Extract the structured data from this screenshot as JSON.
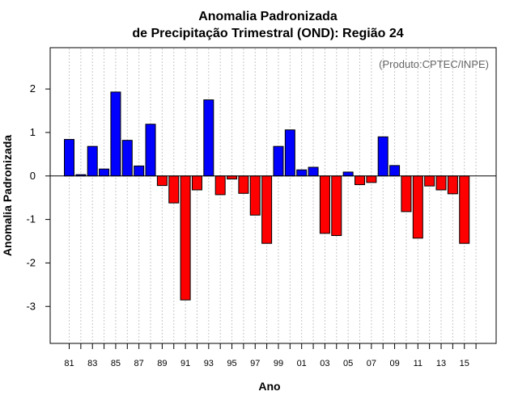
{
  "chart_data": {
    "type": "bar",
    "title_line1": "Anomalia Padronizada",
    "title_line2": "de Precipitação Trimestral (OND): Região 24",
    "xlabel": "Ano",
    "ylabel": "Anomalia Padronizada",
    "credit": "(Produto:CPTEC/INPE)",
    "ylim": [
      -3.85,
      2.95
    ],
    "yticks": [
      {
        "value": 2,
        "label": "2"
      },
      {
        "value": 1,
        "label": "1"
      },
      {
        "value": 0,
        "label": "0"
      },
      {
        "value": -1,
        "label": "-1"
      },
      {
        "value": -2,
        "label": "-2"
      },
      {
        "value": -3,
        "label": "-3"
      }
    ],
    "positive_color": "#0000ff",
    "negative_color": "#ff0000",
    "categories": [
      "81",
      "82",
      "83",
      "84",
      "85",
      "86",
      "87",
      "88",
      "89",
      "90",
      "91",
      "92",
      "93",
      "94",
      "95",
      "96",
      "97",
      "98",
      "99",
      "00",
      "01",
      "02",
      "03",
      "04",
      "05",
      "06",
      "07",
      "08",
      "09",
      "10",
      "11",
      "12",
      "13",
      "14",
      "15",
      "16"
    ],
    "xtick_labels": [
      "81",
      "83",
      "85",
      "87",
      "89",
      "91",
      "93",
      "95",
      "97",
      "99",
      "01",
      "03",
      "05",
      "07",
      "09",
      "11",
      "13",
      "15"
    ],
    "values": [
      0.84,
      0.03,
      0.68,
      0.16,
      1.93,
      0.82,
      0.23,
      1.19,
      -0.22,
      -0.62,
      -2.85,
      -0.32,
      1.75,
      -0.43,
      -0.07,
      -0.4,
      -0.9,
      -1.55,
      0.68,
      1.06,
      0.14,
      0.2,
      -1.32,
      -1.37,
      0.09,
      -0.2,
      -0.15,
      0.9,
      0.24,
      -0.82,
      -1.43,
      -0.23,
      -0.32,
      -0.41,
      -1.55,
      null
    ]
  }
}
